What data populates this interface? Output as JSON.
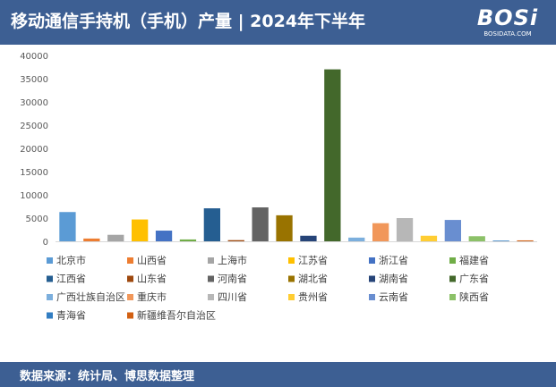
{
  "header": {
    "title": "移动通信手持机（手机）产量 | 2024年下半年"
  },
  "logo": {
    "main": "BOSi",
    "sub": "BOSIDATA.COM"
  },
  "footer": {
    "source": "数据来源：统计局、博思数据整理"
  },
  "chart_data": {
    "type": "bar",
    "title": "移动通信手持机（手机）产量 | 2024年下半年",
    "xlabel": "",
    "ylabel": "",
    "ylim": [
      0,
      40000
    ],
    "yticks": [
      0,
      5000,
      10000,
      15000,
      20000,
      25000,
      30000,
      35000,
      40000
    ],
    "grid": false,
    "legend_position": "bottom",
    "series": [
      {
        "name": "北京市",
        "value": 6300,
        "color": "#5b9bd5"
      },
      {
        "name": "山西省",
        "value": 600,
        "color": "#ed7d31"
      },
      {
        "name": "上海市",
        "value": 1400,
        "color": "#a5a5a5"
      },
      {
        "name": "江苏省",
        "value": 4700,
        "color": "#ffc000"
      },
      {
        "name": "浙江省",
        "value": 2300,
        "color": "#4472c4"
      },
      {
        "name": "福建省",
        "value": 400,
        "color": "#70ad47"
      },
      {
        "name": "江西省",
        "value": 7100,
        "color": "#255e91"
      },
      {
        "name": "山东省",
        "value": 250,
        "color": "#9e480e"
      },
      {
        "name": "河南省",
        "value": 7300,
        "color": "#636363"
      },
      {
        "name": "湖北省",
        "value": 5600,
        "color": "#997300"
      },
      {
        "name": "湖南省",
        "value": 1200,
        "color": "#264478"
      },
      {
        "name": "广东省",
        "value": 37000,
        "color": "#43682b"
      },
      {
        "name": "广西壮族自治区",
        "value": 800,
        "color": "#7cafdd"
      },
      {
        "name": "重庆市",
        "value": 3900,
        "color": "#f1975a"
      },
      {
        "name": "四川省",
        "value": 5000,
        "color": "#b7b7b7"
      },
      {
        "name": "贵州省",
        "value": 1200,
        "color": "#ffcd33"
      },
      {
        "name": "云南省",
        "value": 4600,
        "color": "#698ed0"
      },
      {
        "name": "陕西省",
        "value": 1100,
        "color": "#8cc168"
      },
      {
        "name": "青海省",
        "value": 150,
        "color": "#327dc2"
      },
      {
        "name": "新疆维吾尔自治区",
        "value": 200,
        "color": "#d26012"
      }
    ]
  }
}
